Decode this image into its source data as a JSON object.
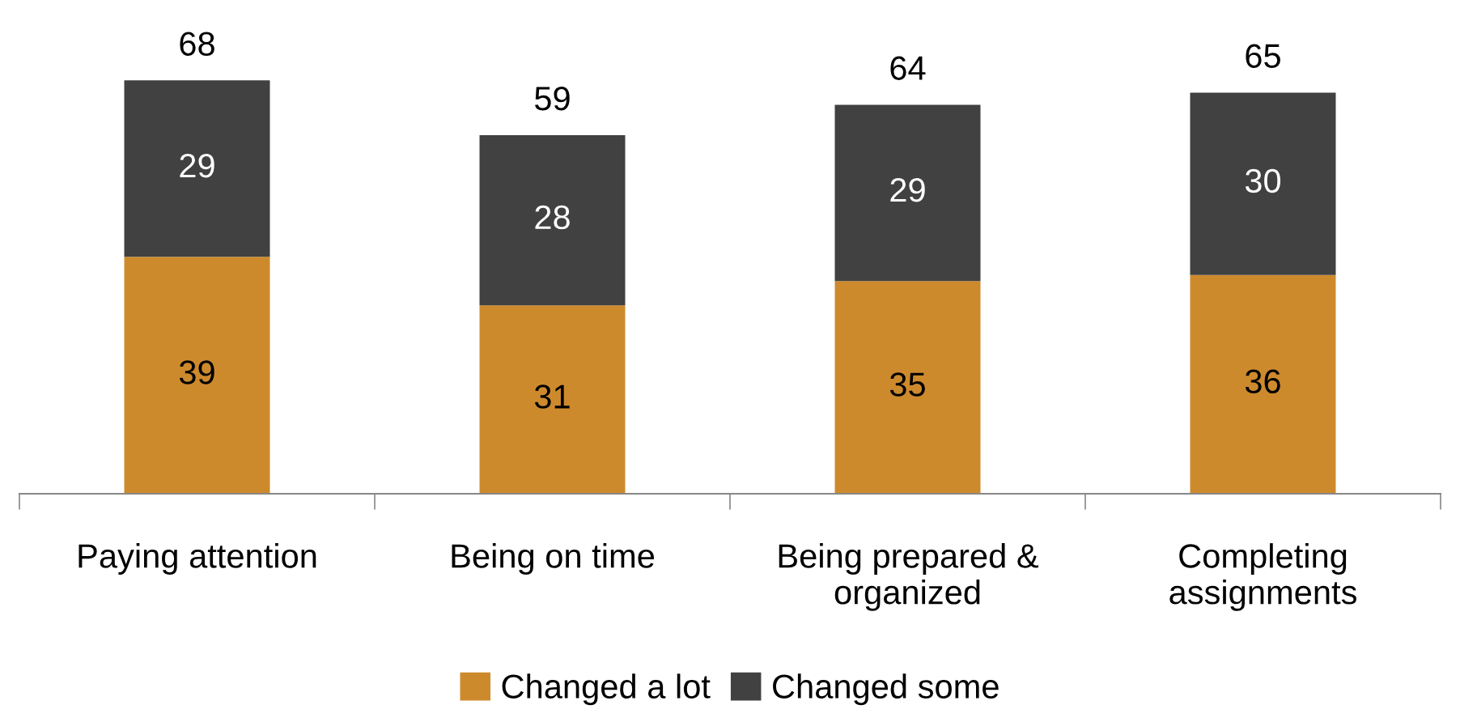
{
  "chart_data": {
    "type": "bar",
    "stacked": true,
    "categories": [
      "Paying attention",
      "Being on time",
      "Being prepared &\norganized",
      "Completing\nassignments"
    ],
    "series": [
      {
        "name": "Changed a lot",
        "color": "#cd8a2d",
        "values": [
          39,
          31,
          35,
          36
        ]
      },
      {
        "name": "Changed some",
        "color": "#414141",
        "values": [
          29,
          28,
          29,
          30
        ]
      }
    ],
    "data_labels": true,
    "totals": [
      "68",
      "59",
      "64",
      "65"
    ],
    "legend": "bottom"
  }
}
